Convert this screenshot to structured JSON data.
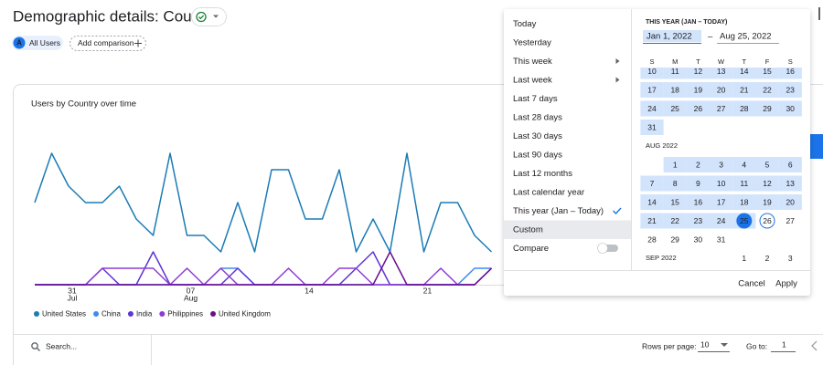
{
  "header": {
    "title": "Demographic details: Country",
    "segment_badge": "A",
    "segment": "All Users",
    "add_comparison": "Add comparison"
  },
  "chart_data": {
    "type": "line",
    "title": "Users by Country over time",
    "categories": [
      null,
      null,
      "31",
      null,
      null,
      null,
      null,
      null,
      null,
      "07",
      null,
      null,
      null,
      null,
      null,
      null,
      "14",
      null,
      null,
      null,
      null,
      null,
      null,
      "21",
      null,
      null,
      null,
      null
    ],
    "category_months": [
      null,
      null,
      "Jul",
      null,
      null,
      null,
      null,
      null,
      null,
      "Aug",
      null,
      null,
      null,
      null,
      null,
      null,
      null,
      null,
      null,
      null,
      null,
      null,
      null,
      null,
      null,
      null,
      null,
      null
    ],
    "ylim": [
      0,
      9
    ],
    "series": [
      {
        "name": "United States",
        "color": "#1b7bb5",
        "values": [
          5,
          8,
          6,
          5,
          5,
          6,
          4,
          3,
          8,
          3,
          3,
          2,
          5,
          2,
          7,
          7,
          4,
          4,
          7,
          2,
          4,
          2,
          8,
          2,
          5,
          5,
          3,
          2
        ]
      },
      {
        "name": "China",
        "color": "#3d8af7",
        "values": [
          0,
          0,
          0,
          0,
          0,
          0,
          0,
          0,
          0,
          0,
          0,
          1,
          1,
          0,
          0,
          0,
          0,
          0,
          0,
          0,
          0,
          0,
          0,
          0,
          0,
          0,
          1,
          1
        ]
      },
      {
        "name": "India",
        "color": "#5e35d6",
        "values": [
          0,
          0,
          0,
          0,
          1,
          0,
          0,
          2,
          0,
          0,
          0,
          0,
          1,
          0,
          0,
          0,
          0,
          0,
          0,
          1,
          2,
          0,
          0,
          0,
          0,
          0,
          0,
          1
        ]
      },
      {
        "name": "Philippines",
        "color": "#8e3bd4",
        "values": [
          0,
          0,
          0,
          0,
          1,
          1,
          1,
          1,
          0,
          1,
          0,
          1,
          0,
          0,
          0,
          1,
          0,
          0,
          1,
          1,
          0,
          0,
          0,
          0,
          1,
          0,
          0,
          1
        ]
      },
      {
        "name": "United Kingdom",
        "color": "#6a0e8f",
        "values": [
          0,
          0,
          0,
          0,
          0,
          0,
          0,
          0,
          0,
          0,
          0,
          0,
          0,
          0,
          0,
          0,
          0,
          0,
          0,
          0,
          0,
          2,
          0,
          0,
          0,
          0,
          0,
          1
        ]
      }
    ]
  },
  "table_controls": {
    "search_placeholder": "Search...",
    "rows_per_page_label": "Rows per page:",
    "rows_per_page": 10,
    "go_to_label": "Go to:",
    "go_to": 1
  },
  "date_picker": {
    "options": [
      {
        "label": "Today"
      },
      {
        "label": "Yesterday"
      },
      {
        "label": "This week",
        "submenu": true
      },
      {
        "label": "Last week",
        "submenu": true
      },
      {
        "label": "Last 7 days"
      },
      {
        "label": "Last 28 days"
      },
      {
        "label": "Last 30 days"
      },
      {
        "label": "Last 90 days"
      },
      {
        "label": "Last 12 months"
      },
      {
        "label": "Last calendar year"
      },
      {
        "label": "This year (Jan – Today)",
        "checked": true
      },
      {
        "label": "Custom",
        "highlighted": true
      }
    ],
    "compare": "Compare",
    "range_title": "THIS YEAR (JAN – TODAY)",
    "start": "Jan 1, 2022",
    "separator": "–",
    "end": "Aug 25, 2022",
    "weekdays": [
      "S",
      "M",
      "T",
      "W",
      "T",
      "F",
      "S"
    ],
    "months": [
      {
        "weeks": [
          [
            10,
            11,
            12,
            13,
            14,
            15,
            16
          ],
          [
            17,
            18,
            19,
            20,
            21,
            22,
            23
          ],
          [
            24,
            25,
            26,
            27,
            28,
            29,
            30
          ],
          [
            31,
            null,
            null,
            null,
            null,
            null,
            null
          ]
        ]
      },
      {
        "label": "AUG 2022",
        "weeks": [
          [
            null,
            1,
            2,
            3,
            4,
            5,
            6
          ],
          [
            7,
            8,
            9,
            10,
            11,
            12,
            13
          ],
          [
            14,
            15,
            16,
            17,
            18,
            19,
            20
          ],
          [
            21,
            22,
            23,
            24,
            25,
            26,
            27
          ],
          [
            28,
            29,
            30,
            31,
            null,
            null,
            null
          ]
        ]
      },
      {
        "label": "SEP 2022",
        "weeks": [
          [
            null,
            null,
            null,
            null,
            1,
            2,
            3
          ]
        ]
      }
    ],
    "cancel": "Cancel",
    "apply": "Apply"
  }
}
